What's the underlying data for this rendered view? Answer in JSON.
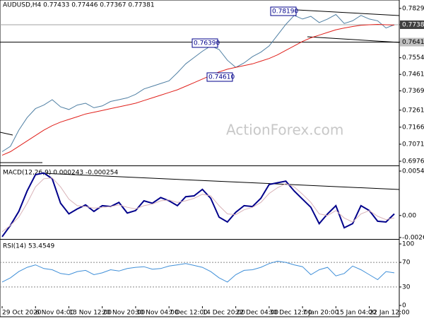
{
  "chart_data": [
    {
      "type": "line",
      "title": "AUDUSD,H4  0.77433 0.77446 0.77367 0.77381",
      "watermark": "ActionForex.com",
      "ylim": [
        0.6957,
        0.7876
      ],
      "yticks": [
        {
          "value": 0.7829,
          "label": "0.78290"
        },
        0.77381,
        {
          "value": 0.7641,
          "label": "0.76410"
        },
        {
          "value": 0.7554,
          "label": "0.75540"
        },
        {
          "value": 0.7461,
          "label": "0.74610"
        },
        {
          "value": 0.7369,
          "label": "0.73690"
        },
        0.72615,
        0.71665,
        0.70715,
        0.69765
      ],
      "reference_lines": [
        0.77381,
        0.7641
      ],
      "annotations": [
        "0.78190",
        "0.76390",
        "0.74610"
      ],
      "series": [
        {
          "color": "#4f7fa3",
          "values": [
            0.703,
            0.706,
            0.715,
            0.722,
            0.727,
            0.729,
            0.732,
            0.728,
            0.7265,
            0.729,
            0.73,
            0.7275,
            0.7285,
            0.731,
            0.732,
            0.733,
            0.735,
            0.738,
            0.7395,
            0.741,
            0.7425,
            0.747,
            0.752,
            0.7555,
            0.759,
            0.762,
            0.76,
            0.754,
            0.75,
            0.7525,
            0.756,
            0.7585,
            0.762,
            0.768,
            0.774,
            0.779,
            0.777,
            0.7785,
            0.775,
            0.777,
            0.7795,
            0.7745,
            0.776,
            0.779,
            0.777,
            0.776,
            0.772,
            0.7738
          ]
        },
        {
          "color": "#e0201b",
          "values": [
            0.701,
            0.703,
            0.706,
            0.709,
            0.712,
            0.715,
            0.7175,
            0.7195,
            0.721,
            0.7225,
            0.724,
            0.725,
            0.726,
            0.727,
            0.728,
            0.729,
            0.73,
            0.7315,
            0.733,
            0.7345,
            0.736,
            0.7375,
            0.7395,
            0.7415,
            0.7435,
            0.7455,
            0.7475,
            0.749,
            0.75,
            0.751,
            0.752,
            0.7535,
            0.755,
            0.757,
            0.7595,
            0.762,
            0.7645,
            0.7665,
            0.768,
            0.7695,
            0.771,
            0.772,
            0.7728,
            0.7735,
            0.7738,
            0.774,
            0.7738,
            0.7736
          ]
        }
      ]
    },
    {
      "type": "line",
      "title": "MACD(12,26,9) 0.000243 -0.000254",
      "ylim": [
        -0.0027,
        0.00595
      ],
      "yticks": [
        0.005433,
        {
          "value": 0,
          "label": "0.00"
        },
        -0.002694
      ],
      "series": [
        {
          "color": "#00008b",
          "values": [
            -0.0026,
            -0.0012,
            0.0005,
            0.003,
            0.005,
            0.0052,
            0.0045,
            0.0015,
            0.0002,
            0.0008,
            0.0013,
            0.0005,
            0.0012,
            0.0011,
            0.0016,
            0.0003,
            0.0006,
            0.0018,
            0.0015,
            0.0022,
            0.0018,
            0.0012,
            0.0023,
            0.0024,
            0.0032,
            0.0021,
            -0.0002,
            -0.0008,
            0.0004,
            0.0012,
            0.0011,
            0.0021,
            0.0038,
            0.004,
            0.0042,
            0.003,
            0.002,
            0.001,
            -0.001,
            0.0002,
            0.0012,
            -0.0015,
            -0.001,
            0.0012,
            0.0006,
            -0.0007,
            -0.0008,
            0.0002
          ]
        },
        {
          "color": "#d9b3b8",
          "values": [
            -0.002,
            -0.0012,
            -0.0002,
            0.0015,
            0.0035,
            0.0045,
            0.0046,
            0.0035,
            0.002,
            0.0012,
            0.0011,
            0.0009,
            0.001,
            0.0011,
            0.0013,
            0.001,
            0.0008,
            0.0012,
            0.0014,
            0.0018,
            0.0019,
            0.0016,
            0.0018,
            0.0021,
            0.0026,
            0.0024,
            0.0012,
            0.0002,
            0.0001,
            0.0007,
            0.001,
            0.0016,
            0.0027,
            0.0034,
            0.0039,
            0.0035,
            0.0026,
            0.0016,
            0.0002,
            0.0,
            0.0006,
            -0.0003,
            -0.0008,
            0.0002,
            0.0006,
            -0.0001,
            -0.0005,
            -0.0003
          ]
        }
      ]
    },
    {
      "type": "line",
      "title": "RSI(14) 53.4549",
      "ylim": [
        0,
        100
      ],
      "yticks": [
        100,
        70,
        30,
        0
      ],
      "levels": [
        70,
        30
      ],
      "categories": [
        "29 Oct 2020",
        null,
        null,
        null,
        "6 Nov 04:00",
        null,
        null,
        null,
        "13 Nov 12:00",
        null,
        null,
        null,
        "20 Nov 20:00",
        null,
        null,
        null,
        "30 Nov 04:00",
        null,
        null,
        null,
        "7 Dec 12:00",
        null,
        null,
        null,
        "14 Dec 20:00",
        null,
        null,
        null,
        "22 Dec 04:00",
        null,
        null,
        null,
        "30 Dec 12:00",
        null,
        null,
        null,
        "7 Jan 20:00",
        null,
        null,
        null,
        "15 Jan 04:00",
        null,
        null,
        null,
        "22 Jan 12:00",
        null,
        null,
        null
      ],
      "series": [
        {
          "color": "#3f8fd8",
          "values": [
            38,
            45,
            55,
            62,
            66,
            60,
            58,
            52,
            50,
            55,
            57,
            50,
            53,
            58,
            56,
            60,
            62,
            63,
            59,
            60,
            64,
            66,
            68,
            65,
            62,
            55,
            45,
            38,
            50,
            57,
            58,
            62,
            68,
            72,
            70,
            66,
            63,
            50,
            58,
            62,
            48,
            52,
            64,
            58,
            50,
            42,
            55,
            53
          ]
        }
      ]
    }
  ]
}
